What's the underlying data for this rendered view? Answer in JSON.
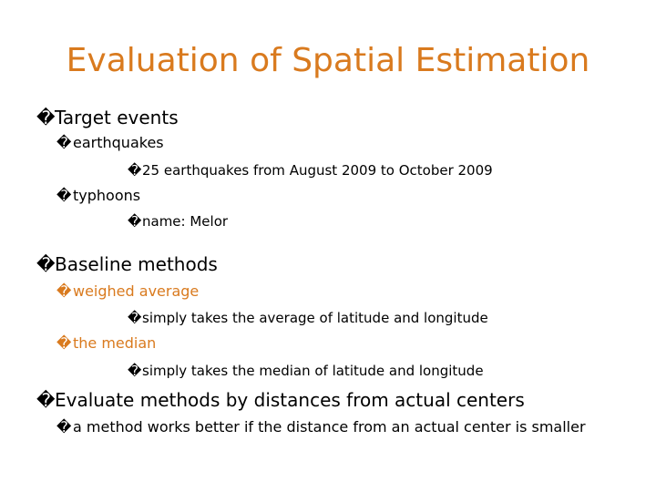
{
  "colors": {
    "accent": "#d97a1e",
    "text": "#000000",
    "background": "#ffffff"
  },
  "bullet_glyph": "�",
  "slide": {
    "title": "Evaluation of Spatial Estimation",
    "lines": [
      {
        "level": 1,
        "text": "Target events",
        "color": "#000000"
      },
      {
        "level": 2,
        "text": "earthquakes",
        "color": "#000000"
      },
      {
        "level": 3,
        "text": "25 earthquakes from August 2009 to October 2009",
        "color": "#000000"
      },
      {
        "level": 2,
        "text": "typhoons",
        "color": "#000000"
      },
      {
        "level": 3,
        "text": "name: Melor",
        "color": "#000000"
      },
      {
        "level": 1,
        "text": "Baseline methods",
        "color": "#000000"
      },
      {
        "level": 2,
        "text": "weighed average",
        "color": "#d97a1e"
      },
      {
        "level": 3,
        "text": "simply takes the average of latitude and longitude",
        "color": "#000000"
      },
      {
        "level": 2,
        "text": "the median",
        "color": "#d97a1e"
      },
      {
        "level": 3,
        "text": "simply takes the median of latitude and longitude",
        "color": "#000000"
      },
      {
        "level": 1,
        "text": "Evaluate methods by distances from actual centers",
        "color": "#000000"
      },
      {
        "level": 2,
        "text": "a method works better if the distance from an actual center is smaller",
        "color": "#000000"
      }
    ]
  }
}
